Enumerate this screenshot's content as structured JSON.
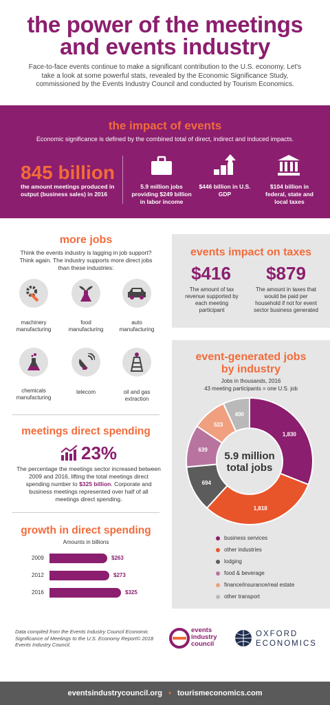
{
  "title_line1": "the power of the meetings",
  "title_line2": "and events industry",
  "intro": "Face-to-face events continue to make a significant contribution to the U.S. economy. Let's take a look at some powerful stats, revealed by the Economic Significance Study, commissioned by the Events Industry Council and conducted by Tourism Economics.",
  "impact": {
    "heading": "the impact of events",
    "subheading": "Economic significance is defined by the combined total of direct, indirect and induced impacts.",
    "big_value": "845 billion",
    "big_caption": "the amount meetings produced in output (business sales) in 2016",
    "stats": [
      {
        "icon": "briefcase-icon",
        "text": "5.9 million jobs providing $249 billion in labor income"
      },
      {
        "icon": "growth-arrow-icon",
        "text": "$446 billion in U.S. GDP"
      },
      {
        "icon": "government-building-icon",
        "text": "$104 billion in federal, state and local taxes"
      }
    ]
  },
  "more_jobs": {
    "heading": "more jobs",
    "text": "Think the events industry is lagging in job support? Think again. The industry supports more direct jobs than these industries:",
    "industries": [
      {
        "icon": "gear-wrench-icon",
        "label": "machinery manufacturing"
      },
      {
        "icon": "plant-flask-icon",
        "label": "food manufacturing"
      },
      {
        "icon": "car-icon",
        "label": "auto manufacturing"
      },
      {
        "icon": "chemical-flask-icon",
        "label": "chemicals manufacturing"
      },
      {
        "icon": "satellite-dish-icon",
        "label": "telecom"
      },
      {
        "icon": "oil-rig-icon",
        "label": "oil and gas extraction"
      }
    ]
  },
  "taxes": {
    "heading": "events impact on taxes",
    "value1": "$416",
    "caption1": "The amount of tax revenue supported by each meeting participant",
    "value2": "$879",
    "caption2": "The amount in taxes that would be paid per household if not for event sector business generated"
  },
  "spending": {
    "heading": "meetings direct spending",
    "percent": "23%",
    "text_a": "The percentage the meetings sector increased between 2009 and 2016, lifting the total meetings direct spending number to ",
    "text_bold": "$325 billion",
    "text_b": ". Corporate and business meetings represented over half of all meetings direct spending."
  },
  "growth": {
    "heading": "growth in direct spending",
    "subheading": "Amounts in billions",
    "bars": [
      {
        "year": "2009",
        "value": 263,
        "label": "$263"
      },
      {
        "year": "2012",
        "value": 273,
        "label": "$273"
      },
      {
        "year": "2016",
        "value": 325,
        "label": "$325"
      }
    ]
  },
  "jobs_chart": {
    "heading_line1": "event-generated jobs",
    "heading_line2": "by industry",
    "sub1": "Jobs in thousands, 2016",
    "sub2": "43 meeting participants = one U.S. job",
    "center_line1": "5.9 million",
    "center_line2": "total jobs"
  },
  "chart_data": {
    "type": "pie",
    "categories": [
      "business services",
      "other industries",
      "lodging",
      "food & beverage",
      "finance/insurance/real estate",
      "other transport"
    ],
    "values": [
      1830,
      1818,
      694,
      639,
      523,
      400
    ],
    "colors": [
      "#8b1e6e",
      "#e8552b",
      "#5c5c5c",
      "#b8749f",
      "#f0a07f",
      "#b9b9b9"
    ]
  },
  "footnote": "Data compiled from the Events Industry Council Economic Significance of Meetings to the U.S. Economy Report© 2018 Events Industry Council.",
  "logos": {
    "eic_line1": "events",
    "eic_line2": "industry",
    "eic_line3": "council",
    "oxford_line1": "OXFORD",
    "oxford_line2": "ECONOMICS"
  },
  "footer": {
    "link1": "eventsindustrycouncil.org",
    "sep": "•",
    "link2": "tourismeconomics.com"
  }
}
